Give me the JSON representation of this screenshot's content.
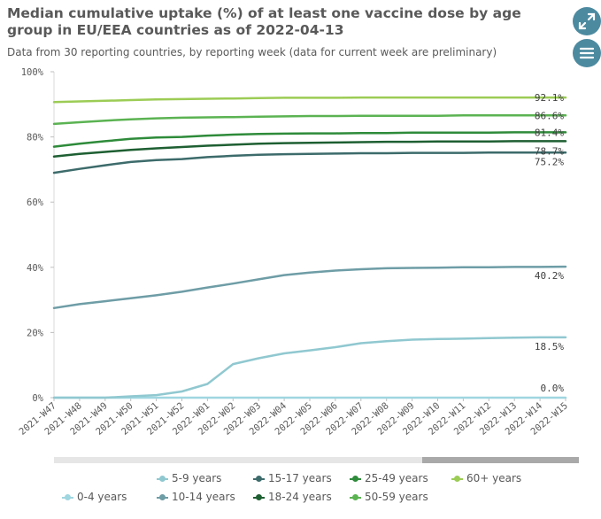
{
  "header": {
    "title": "Median cumulative uptake (%) of at least one vaccine dose by age group in EU/EEA countries as of 2022-04-13",
    "subtitle": "Data from 30 reporting countries, by reporting week (data for current week are preliminary)"
  },
  "controls": {
    "expand_icon": "expand-icon",
    "menu_icon": "menu-icon",
    "accent_color": "#4c8aa0"
  },
  "chart_data": {
    "type": "line",
    "title": "Median cumulative uptake (%) of at least one vaccine dose by age group in EU/EEA countries as of 2022-04-13",
    "subtitle": "Data from 30 reporting countries, by reporting week (data for current week are preliminary)",
    "xlabel": "",
    "ylabel": "",
    "ylim": [
      0,
      100
    ],
    "yticks": [
      "0%",
      "20%",
      "40%",
      "60%",
      "80%",
      "100%"
    ],
    "grid": false,
    "legend_position": "bottom",
    "x": [
      "2021-W47",
      "2021-W48",
      "2021-W49",
      "2021-W50",
      "2021-W51",
      "2021-W52",
      "2022-W01",
      "2022-W02",
      "2022-W03",
      "2022-W04",
      "2022-W05",
      "2022-W06",
      "2022-W07",
      "2022-W08",
      "2022-W09",
      "2022-W10",
      "2022-W11",
      "2022-W12",
      "2022-W13",
      "2022-W14",
      "2022-W15"
    ],
    "series": [
      {
        "name": "60+ years",
        "color": "#9ccc55",
        "end_label": "92.1%",
        "values": [
          90.7,
          90.9,
          91.1,
          91.3,
          91.5,
          91.6,
          91.7,
          91.8,
          91.9,
          92.0,
          92.0,
          92.0,
          92.1,
          92.1,
          92.1,
          92.1,
          92.1,
          92.1,
          92.1,
          92.1,
          92.1
        ]
      },
      {
        "name": "50-59 years",
        "color": "#5bb352",
        "end_label": "86.6%",
        "values": [
          84.0,
          84.5,
          85.0,
          85.4,
          85.7,
          85.9,
          86.0,
          86.1,
          86.2,
          86.3,
          86.4,
          86.4,
          86.5,
          86.5,
          86.5,
          86.5,
          86.6,
          86.6,
          86.6,
          86.6,
          86.6
        ]
      },
      {
        "name": "25-49 years",
        "color": "#2e8b3a",
        "end_label": "81.4%",
        "values": [
          77.0,
          77.9,
          78.7,
          79.4,
          79.8,
          80.0,
          80.4,
          80.7,
          80.9,
          81.0,
          81.1,
          81.1,
          81.2,
          81.2,
          81.3,
          81.3,
          81.3,
          81.3,
          81.4,
          81.4,
          81.4
        ]
      },
      {
        "name": "18-24 years",
        "color": "#1e5f32",
        "end_label": "78.7%",
        "values": [
          74.0,
          74.8,
          75.4,
          76.0,
          76.5,
          76.9,
          77.3,
          77.6,
          77.9,
          78.1,
          78.2,
          78.3,
          78.4,
          78.5,
          78.5,
          78.6,
          78.6,
          78.6,
          78.7,
          78.7,
          78.7
        ]
      },
      {
        "name": "15-17 years",
        "color": "#3d6b6b",
        "end_label": "75.2%",
        "values": [
          69.0,
          70.2,
          71.3,
          72.3,
          72.9,
          73.2,
          73.8,
          74.2,
          74.5,
          74.7,
          74.8,
          74.9,
          75.0,
          75.0,
          75.1,
          75.1,
          75.1,
          75.2,
          75.2,
          75.2,
          75.2
        ]
      },
      {
        "name": "10-14 years",
        "color": "#6e9da6",
        "end_label": "40.2%",
        "values": [
          27.5,
          28.7,
          29.6,
          30.5,
          31.4,
          32.5,
          33.8,
          35.0,
          36.3,
          37.6,
          38.4,
          39.0,
          39.4,
          39.7,
          39.8,
          39.9,
          40.0,
          40.0,
          40.1,
          40.1,
          40.2
        ]
      },
      {
        "name": "5-9 years",
        "color": "#90c8d0",
        "end_label": "18.5%",
        "values": [
          0.0,
          0.0,
          0.0,
          0.4,
          0.8,
          1.9,
          4.2,
          10.3,
          12.1,
          13.6,
          14.5,
          15.5,
          16.7,
          17.3,
          17.8,
          18.0,
          18.1,
          18.3,
          18.4,
          18.5,
          18.5
        ]
      },
      {
        "name": "0-4 years",
        "color": "#9fd6e0",
        "end_label": "0.0%",
        "values": [
          0.0,
          0.0,
          0.0,
          0.0,
          0.0,
          0.0,
          0.0,
          0.0,
          0.0,
          0.0,
          0.0,
          0.0,
          0.0,
          0.0,
          0.0,
          0.0,
          0.0,
          0.0,
          0.0,
          0.0,
          0.0
        ]
      }
    ],
    "legend": [
      {
        "name": "5-9 years",
        "color": "#90c8d0"
      },
      {
        "name": "15-17 years",
        "color": "#3d6b6b"
      },
      {
        "name": "25-49 years",
        "color": "#2e8b3a"
      },
      {
        "name": "60+ years",
        "color": "#9ccc55"
      },
      {
        "name": "0-4 years",
        "color": "#9fd6e0"
      },
      {
        "name": "10-14 years",
        "color": "#6e9da6"
      },
      {
        "name": "18-24 years",
        "color": "#1e5f32"
      },
      {
        "name": "50-59 years",
        "color": "#5bb352"
      }
    ]
  }
}
